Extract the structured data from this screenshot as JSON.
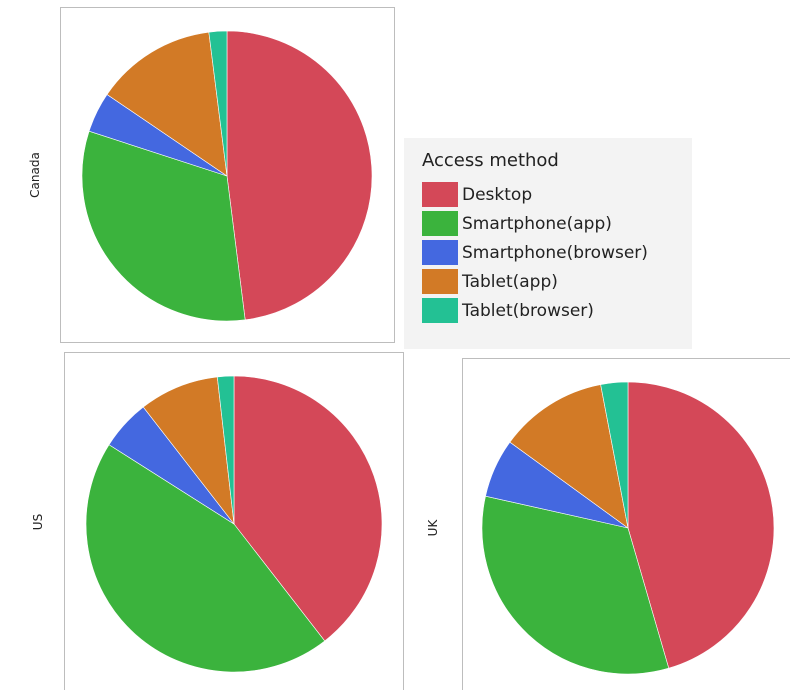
{
  "legend": {
    "title": "Access method",
    "items": [
      {
        "label": "Desktop",
        "color": "#d44858"
      },
      {
        "label": "Smartphone(app)",
        "color": "#3bb33d"
      },
      {
        "label": "Smartphone(browser)",
        "color": "#4468e0"
      },
      {
        "label": "Tablet(app)",
        "color": "#d27a26"
      },
      {
        "label": "Tablet(browser)",
        "color": "#23c194"
      }
    ]
  },
  "chart_data": [
    {
      "type": "pie",
      "region": "Canada",
      "categories": [
        "Desktop",
        "Smartphone(app)",
        "Smartphone(browser)",
        "Tablet(app)",
        "Tablet(browser)"
      ],
      "values": [
        48,
        32,
        4.5,
        13.5,
        2
      ]
    },
    {
      "type": "pie",
      "region": "US",
      "categories": [
        "Desktop",
        "Smartphone(app)",
        "Smartphone(browser)",
        "Tablet(app)",
        "Tablet(browser)"
      ],
      "values": [
        39.5,
        44.5,
        5.5,
        8.7,
        1.8
      ]
    },
    {
      "type": "pie",
      "region": "UK",
      "categories": [
        "Desktop",
        "Smartphone(app)",
        "Smartphone(browser)",
        "Tablet(app)",
        "Tablet(browser)"
      ],
      "values": [
        45.5,
        33,
        6.5,
        12,
        3
      ]
    }
  ]
}
